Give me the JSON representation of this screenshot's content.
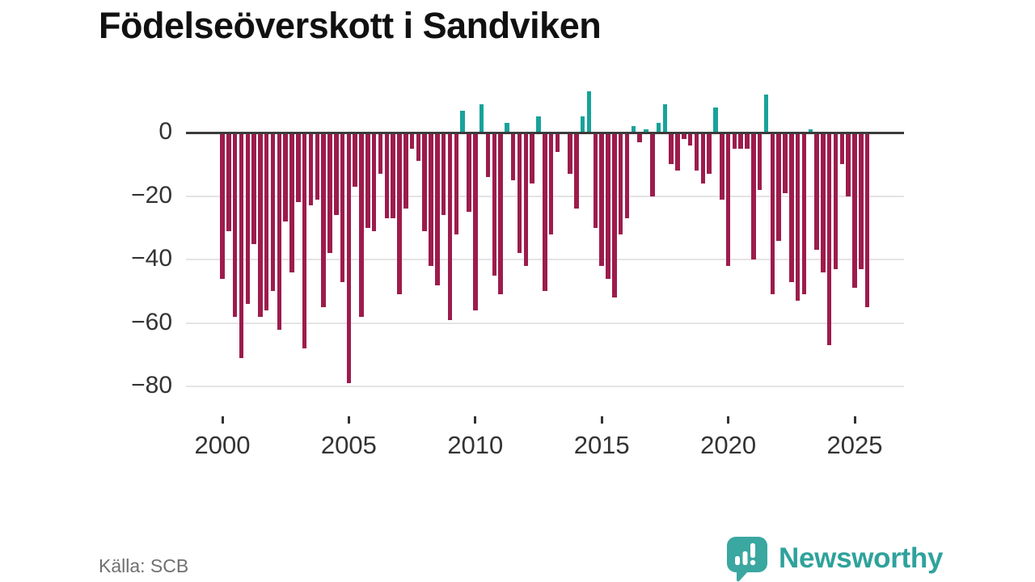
{
  "header": {
    "title": "Födelseöverskott i Sandviken"
  },
  "footer": {
    "source_label": "Källa: SCB",
    "brand": {
      "name": "Newsworthy",
      "icon": "newsworthy-speech-bubble-chart-icon"
    }
  },
  "colors": {
    "positive_bar": "#17a39b",
    "negative_bar": "#9d1c4c",
    "zero_line": "#3b3b3b",
    "gridline": "#e4e4e4",
    "axis_text": "#333333",
    "title_text": "#111111",
    "source_text": "#707070",
    "brand_teal": "#2fa29c",
    "background": "#ffffff"
  },
  "chart_data": {
    "type": "bar",
    "title": "Födelseöverskott i Sandviken",
    "xlabel": "",
    "ylabel": "",
    "grid": true,
    "legend": false,
    "ylim": [
      -88,
      18
    ],
    "y_ticks": [
      0,
      -20,
      -40,
      -60,
      -80
    ],
    "y_tick_labels": [
      "0",
      "−20",
      "−40",
      "−60",
      "−80"
    ],
    "x_ticks": [
      {
        "year": 2000,
        "label": "2000"
      },
      {
        "year": 2005,
        "label": "2005"
      },
      {
        "year": 2010,
        "label": "2010"
      },
      {
        "year": 2015,
        "label": "2015"
      },
      {
        "year": 2020,
        "label": "2020"
      },
      {
        "year": 2025,
        "label": "2025"
      }
    ],
    "x": [
      "2000-Q1",
      "2000-Q2",
      "2000-Q3",
      "2000-Q4",
      "2001-Q1",
      "2001-Q2",
      "2001-Q3",
      "2001-Q4",
      "2002-Q1",
      "2002-Q2",
      "2002-Q3",
      "2002-Q4",
      "2003-Q1",
      "2003-Q2",
      "2003-Q3",
      "2003-Q4",
      "2004-Q1",
      "2004-Q2",
      "2004-Q3",
      "2004-Q4",
      "2005-Q1",
      "2005-Q2",
      "2005-Q3",
      "2005-Q4",
      "2006-Q1",
      "2006-Q2",
      "2006-Q3",
      "2006-Q4",
      "2007-Q1",
      "2007-Q2",
      "2007-Q3",
      "2007-Q4",
      "2008-Q1",
      "2008-Q2",
      "2008-Q3",
      "2008-Q4",
      "2009-Q1",
      "2009-Q2",
      "2009-Q3",
      "2009-Q4",
      "2010-Q1",
      "2010-Q2",
      "2010-Q3",
      "2010-Q4",
      "2011-Q1",
      "2011-Q2",
      "2011-Q3",
      "2011-Q4",
      "2012-Q1",
      "2012-Q2",
      "2012-Q3",
      "2012-Q4",
      "2013-Q1",
      "2013-Q2",
      "2013-Q3",
      "2013-Q4",
      "2014-Q1",
      "2014-Q2",
      "2014-Q3",
      "2014-Q4",
      "2015-Q1",
      "2015-Q2",
      "2015-Q3",
      "2015-Q4",
      "2016-Q1",
      "2016-Q2",
      "2016-Q3",
      "2016-Q4",
      "2017-Q1",
      "2017-Q2",
      "2017-Q3",
      "2017-Q4",
      "2018-Q1",
      "2018-Q2",
      "2018-Q3",
      "2018-Q4",
      "2019-Q1",
      "2019-Q2",
      "2019-Q3",
      "2019-Q4",
      "2020-Q1",
      "2020-Q2",
      "2020-Q3",
      "2020-Q4",
      "2021-Q1",
      "2021-Q2",
      "2021-Q3",
      "2021-Q4",
      "2022-Q1",
      "2022-Q2",
      "2022-Q3",
      "2022-Q4",
      "2023-Q1",
      "2023-Q2",
      "2023-Q3",
      "2023-Q4",
      "2024-Q1",
      "2024-Q2",
      "2024-Q3",
      "2024-Q4",
      "2025-Q1",
      "2025-Q2",
      "2025-Q3"
    ],
    "values": [
      -46,
      -31,
      -58,
      -71,
      -54,
      -35,
      -58,
      -56,
      -50,
      -62,
      -28,
      -44,
      -22,
      -68,
      -23,
      -21,
      -55,
      -38,
      -26,
      -47,
      -79,
      -17,
      -58,
      -30,
      -31,
      -13,
      -27,
      -27,
      -51,
      -24,
      -5,
      -9,
      -31,
      -42,
      -48,
      -26,
      -59,
      -32,
      7,
      -25,
      -56,
      9,
      -14,
      -45,
      -51,
      3,
      -15,
      -38,
      -42,
      -16,
      5,
      -50,
      -32,
      -6,
      0,
      -13,
      -24,
      5,
      13,
      -30,
      -42,
      -46,
      -52,
      -32,
      -27,
      2,
      -3,
      1,
      -20,
      3,
      9,
      -10,
      -12,
      -2,
      -4,
      -12,
      -16,
      -13,
      8,
      -21,
      -42,
      -5,
      -5,
      -5,
      -40,
      -18,
      12,
      -51,
      -34,
      -19,
      -47,
      -53,
      -51,
      1,
      -37,
      -44,
      -67,
      -43,
      -10,
      -20,
      -49,
      -43,
      -55
    ]
  }
}
